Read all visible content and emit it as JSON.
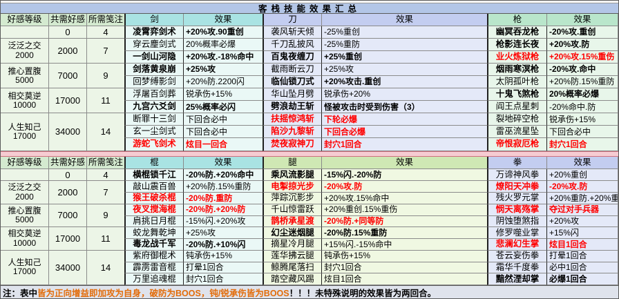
{
  "title": "客栈技能效果汇总",
  "note": {
    "prefix": "注：表中",
    "highlight": "皆为正向增益即加攻为自身，破防为BOOS，钝/锐承伤皆为BOOS",
    "suffix": "！！！未特殊说明的效果皆为两回合。"
  },
  "colors": {
    "title_bg": "#b3c6e7",
    "pink_band": "#f6ccd2",
    "note_bg": "#dfe3ec",
    "red_text": "#ff0000",
    "orange_text": "#e36c09",
    "trio_head": "#d4ead0",
    "trio_body": "#ecf5e7",
    "cyan_head": "#a9e3e3",
    "cyan_body": "#eaf8f6",
    "lavender_head": "#c3cdf0",
    "lavender_body": "#e4e9f8",
    "green_head": "#b9e6cb",
    "green_body": "#e8f6ea",
    "green2_head": "#cfe8b4",
    "green2_body": "#f0f8e2"
  },
  "tables": [
    {
      "headers": [
        "好感等级",
        "共需好感",
        "所需笺注",
        "剑",
        "效果",
        "刀",
        "效果",
        "枪",
        "效果"
      ],
      "levels": [
        {
          "name": "",
          "sub": "",
          "need": "0",
          "notes": "4",
          "span": 1
        },
        {
          "name": "泛泛之交",
          "sub": "2000",
          "need": "2000",
          "notes": "7",
          "span": 2
        },
        {
          "name": "推心置腹",
          "sub": "5000",
          "need": "7000",
          "notes": "9",
          "span": 2
        },
        {
          "name": "相交莫逆",
          "sub": "10000",
          "need": "17000",
          "notes": "11",
          "span": 2
        },
        {
          "name": "人生知己",
          "sub": "17000",
          "need": "34000",
          "notes": "14",
          "span": 3
        }
      ],
      "groups": [
        {
          "weapon": "剑",
          "tint": "cyan",
          "skills": [
            {
              "n": "凌霄弈剑术",
              "e": "+20%攻.90重创",
              "s": "b"
            },
            {
              "n": "穿云麈剑式",
              "e": "20%概率必爆",
              "s": "n"
            },
            {
              "n": "一剑山河隐",
              "e": "+20%攻.-18%命中",
              "s": "b"
            },
            {
              "n": "剑落黄泉崩",
              "e": "+25%攻",
              "s": "b"
            },
            {
              "n": "回梦缚影剑",
              "e": "+20%防.2200闪",
              "s": "n"
            },
            {
              "n": "浮屠百剑葬",
              "e": "锐承伤+15%",
              "s": "n"
            },
            {
              "n": "九宫六爻剑",
              "e": "25%概率必闪",
              "s": "b"
            },
            {
              "n": "断罪十三剑",
              "e": "下回合必中",
              "s": "n"
            },
            {
              "n": "玄一尘剑式",
              "e": "下回合必中",
              "s": "n"
            },
            {
              "n": "游蛇飞剑术",
              "e": "炫目一回合",
              "s": "r"
            }
          ]
        },
        {
          "weapon": "刀",
          "tint": "lavender",
          "skills": [
            {
              "n": "袭风斩天倾",
              "e": "-25%重创",
              "s": "n"
            },
            {
              "n": "千刀乱披风",
              "e": "-25%重防",
              "s": "n"
            },
            {
              "n": "百鬼夜缠刀",
              "e": "+25%重创",
              "s": "b"
            },
            {
              "n": "截雨断云刀",
              "e": "+25%攻",
              "s": "n"
            },
            {
              "n": "临仙锁刀式",
              "e": "+20%攻击.重创",
              "s": "b"
            },
            {
              "n": "华山坠月劈",
              "e": "锐承伤+20%",
              "s": "n"
            },
            {
              "n": "劈浪劫王斩",
              "e": "怪被攻击时受到伤害（3）",
              "s": "b"
            },
            {
              "n": "扶摇惊鸿斩",
              "e": "下轮必爆",
              "s": "r"
            },
            {
              "n": "陷沙九黎斩",
              "e": "下回合必爆",
              "s": "r"
            },
            {
              "n": "焚夜寂神刀",
              "e": "封穴1回合",
              "s": "r"
            }
          ]
        },
        {
          "weapon": "枪",
          "tint": "green",
          "skills": [
            {
              "n": "幽冥吞龙枪",
              "e": "-20%攻.重创",
              "s": "b"
            },
            {
              "n": "枪影连长夜",
              "e": "+20%攻.防",
              "s": "b"
            },
            {
              "n": "业火炼狱枪",
              "e": "+20%攻.15%重伤",
              "s": "r"
            },
            {
              "n": "烟雨寒溟枪",
              "e": "-20%攻.命中",
              "s": "b"
            },
            {
              "n": "太阴孤叶枪",
              "e": "+20%防.15%重防",
              "s": "n"
            },
            {
              "n": "十鬼飞煞枪",
              "e": "20%概率必爆",
              "s": "b"
            },
            {
              "n": "阎王点星刺",
              "e": "-20%命中.防",
              "s": "n"
            },
            {
              "n": "裂地碎空枪",
              "e": "锐承伤+15%",
              "s": "n"
            },
            {
              "n": "雷巫流星坠",
              "e": "下回合必中",
              "s": "n"
            },
            {
              "n": "帝恨寂厄枪",
              "e": "封穴1回合",
              "s": "r"
            }
          ]
        }
      ]
    },
    {
      "headers": [
        "好感等级",
        "共需好感",
        "所需笺注",
        "棍",
        "效果",
        "腿",
        "效果",
        "拳",
        "效果"
      ],
      "levels": [
        {
          "name": "",
          "sub": "",
          "need": "0",
          "notes": "4",
          "span": 1
        },
        {
          "name": "泛泛之交",
          "sub": "2000",
          "need": "2000",
          "notes": "7",
          "span": 2
        },
        {
          "name": "推心置腹",
          "sub": "5000",
          "need": "7000",
          "notes": "9",
          "span": 2
        },
        {
          "name": "相交莫逆",
          "sub": "10000",
          "need": "17000",
          "notes": "11",
          "span": 2
        },
        {
          "name": "人生知己",
          "sub": "17000",
          "need": "34000",
          "notes": "14",
          "span": 3
        }
      ],
      "groups": [
        {
          "weapon": "棍",
          "tint": "cyan",
          "skills": [
            {
              "n": "横棍锁千江",
              "e": "-20%防.+20%命中",
              "s": "b"
            },
            {
              "n": "敲山震百兽",
              "e": "+20%防.15%重防",
              "s": "n"
            },
            {
              "n": "猴王破杀棍",
              "e": "-20%防.重防",
              "s": "r"
            },
            {
              "n": "夜叉搅海棍",
              "e": "-20%防.+20%防",
              "s": "r"
            },
            {
              "n": "肩挑日月棍",
              "e": "-15%闪.+20%攻",
              "s": "n"
            },
            {
              "n": "蛟龙舞乾坤",
              "e": "+25%攻",
              "s": "n"
            },
            {
              "n": "毒龙战千军",
              "e": "-20%防.+10%闪",
              "s": "b"
            },
            {
              "n": "紫府御棍术",
              "e": "钝承伤+15%",
              "s": "n"
            },
            {
              "n": "霹雳雷音棍",
              "e": "打晕1回合",
              "s": "n"
            },
            {
              "n": "万里追魂棍",
              "e": "封穴1回合",
              "s": "n"
            }
          ]
        },
        {
          "weapon": "腿",
          "tint": "green2",
          "skills": [
            {
              "n": "乘风流影腿",
              "e": "-15%闪.-20%防",
              "s": "b"
            },
            {
              "n": "电掣掠光步",
              "e": "-20%攻.防",
              "s": "r"
            },
            {
              "n": "萍踪沉影步",
              "e": "+20%攻.15%命中",
              "s": "n"
            },
            {
              "n": "千山惊雷跃",
              "e": "+20%重创.15%重伤",
              "s": "n"
            },
            {
              "n": "鹊桥承星渡",
              "e": "-20%防.+同等防",
              "s": "r"
            },
            {
              "n": "幻尘迷烟腿",
              "e": "-20%防.15%重防",
              "s": "b"
            },
            {
              "n": "摘星冷月腿",
              "e": "+15%闪.-15%命中",
              "s": "n"
            },
            {
              "n": "莲华拂云腿",
              "e": "钝承伤+15%",
              "s": "n"
            },
            {
              "n": "鲸腾尾落扫",
              "e": "封穴1回合",
              "s": "n"
            },
            {
              "n": "踏空藏风踢",
              "e": "炫目1回合",
              "s": "n"
            }
          ]
        },
        {
          "weapon": "拳",
          "tint": "lavender",
          "skills": [
            {
              "n": "万谛神风拳",
              "e": "+20%重创",
              "s": "n"
            },
            {
              "n": "燎阳天冲拳",
              "e": "-20%攻.防",
              "s": "r"
            },
            {
              "n": "残火罗元掌",
              "e": "+20%重防.+20%重创",
              "s": "n"
            },
            {
              "n": "悯天离殇掌",
              "e": "夺过对手兵器",
              "s": "r"
            },
            {
              "n": "阴蚀堕煞指",
              "e": "+20%攻",
              "s": "n"
            },
            {
              "n": "修罗噬业掌",
              "e": "+15%闪",
              "s": "n"
            },
            {
              "n": "悲澜幻生掌",
              "e": "炫目1回合",
              "s": "r"
            },
            {
              "n": "苍云妄伤拳",
              "e": "打晕1回合",
              "s": "n"
            },
            {
              "n": "霜华千度拳",
              "e": "必中1回合",
              "s": "n"
            },
            {
              "n": "黯然湮却掌",
              "e": "必爆1回合",
              "s": "b"
            }
          ]
        }
      ]
    }
  ]
}
